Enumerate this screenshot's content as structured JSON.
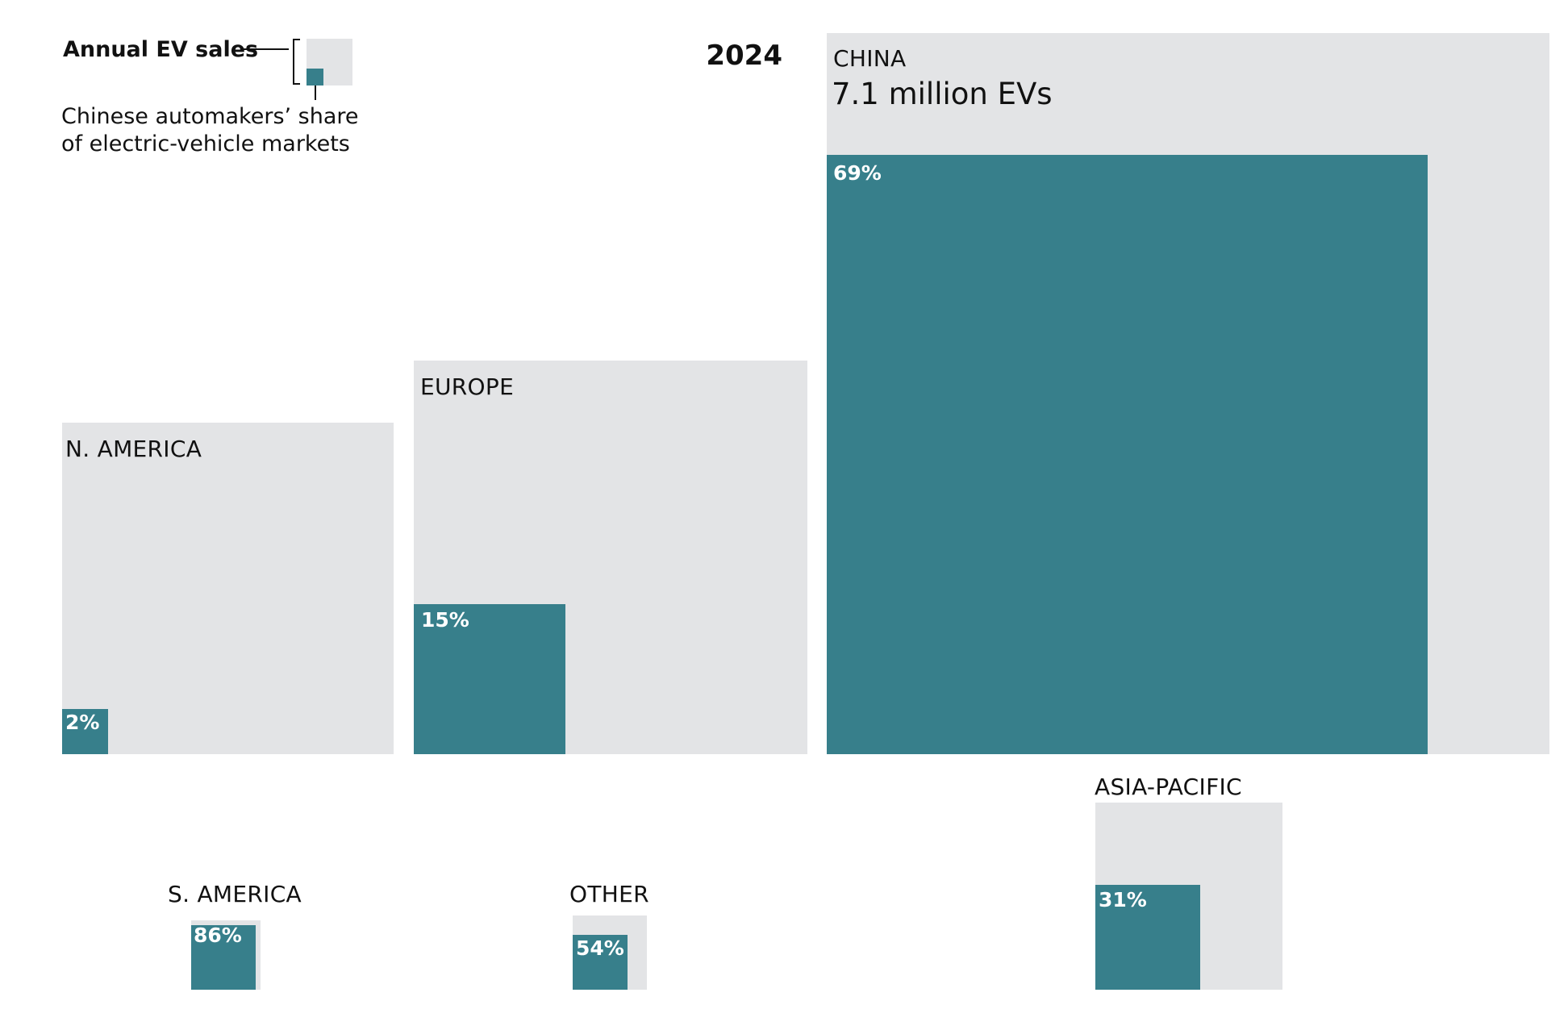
{
  "chart_data": {
    "type": "nested-square",
    "year": "2024",
    "legend": {
      "outer_label": "Annual EV sales",
      "inner_label_lines": [
        "Chinese automakers’ share",
        "of electric-vehicle markets"
      ],
      "outer_color": "#e3e4e6",
      "inner_color": "#377f8b"
    },
    "regions": [
      {
        "key": "china",
        "name": "CHINA",
        "value_text": "7.1 million EVs",
        "sales_millions": 7.1,
        "share_pct": 69,
        "share_text": "69%"
      },
      {
        "key": "europe",
        "name": "EUROPE",
        "sales_millions": 2.1,
        "share_pct": 15,
        "share_text": "15%"
      },
      {
        "key": "namerica",
        "name": "N. AMERICA",
        "sales_millions": 1.5,
        "share_pct": 2,
        "share_text": "2%"
      },
      {
        "key": "asiapacific",
        "name": "ASIA-PACIFIC",
        "sales_millions": 0.47,
        "share_pct": 31,
        "share_text": "31%"
      },
      {
        "key": "samerica",
        "name": "S. AMERICA",
        "sales_millions": 0.067,
        "share_pct": 86,
        "share_text": "86%"
      },
      {
        "key": "other",
        "name": "OTHER",
        "sales_millions": 0.075,
        "share_pct": 54,
        "share_text": "54%"
      }
    ]
  }
}
